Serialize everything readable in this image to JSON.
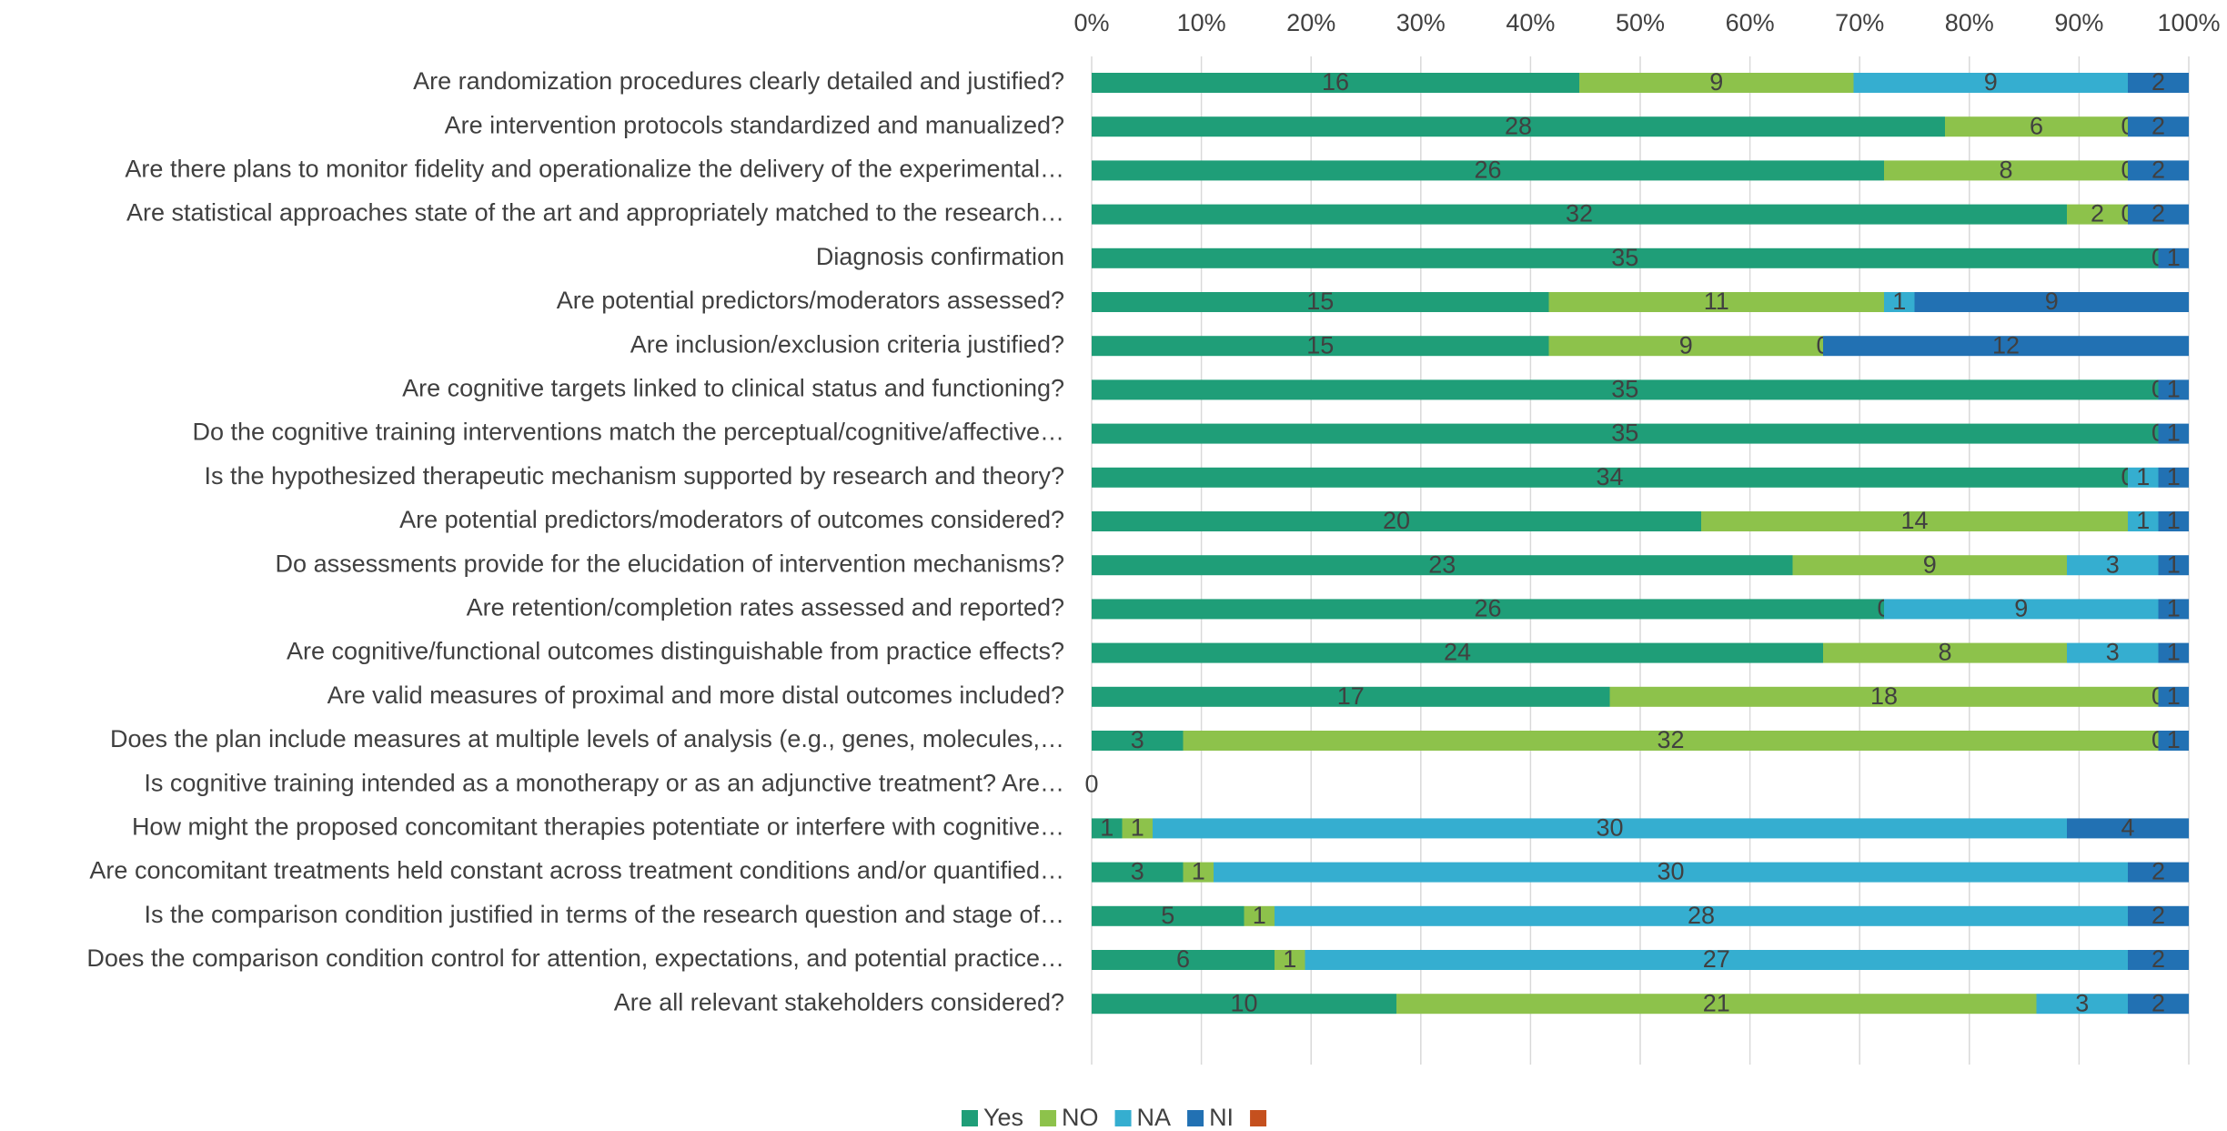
{
  "chart_data": {
    "type": "bar",
    "orientation": "horizontal",
    "stacking": "percent",
    "categories": [
      "Are randomization procedures clearly detailed and justified?",
      "Are intervention protocols standardized and manualized?",
      "Are there plans to monitor fidelity and operationalize the delivery of the experimental…",
      "Are statistical approaches state of the art and appropriately matched to the research…",
      "Diagnosis confirmation",
      "Are potential predictors/moderators assessed?",
      "Are inclusion/exclusion criteria justified?",
      "Are cognitive targets linked to clinical status and functioning?",
      "Do the cognitive training interventions match the perceptual/cognitive/affective…",
      "Is the hypothesized therapeutic mechanism supported by research and theory?",
      "Are potential predictors/moderators of outcomes considered?",
      "Do assessments provide for the elucidation of intervention mechanisms?",
      "Are retention/completion rates assessed and reported?",
      "Are cognitive/functional outcomes distinguishable from practice effects?",
      "Are valid measures of proximal and more distal outcomes included?",
      "Does the plan include measures at multiple levels of analysis (e.g., genes, molecules,…",
      "Is cognitive training intended as a monotherapy or as an adjunctive treatment? Are…",
      "How might the proposed concomitant therapies potentiate or interfere with cognitive…",
      "Are concomitant treatments held constant across treatment conditions and/or quantified…",
      "Is the comparison condition justified in terms of the research question and stage of…",
      "Does the comparison condition control for attention, expectations, and potential practice…",
      "Are all relevant stakeholders considered?"
    ],
    "series": [
      {
        "name": "Yes",
        "color": "#1f9e78",
        "values": [
          16,
          28,
          26,
          32,
          35,
          15,
          15,
          35,
          35,
          34,
          20,
          23,
          26,
          24,
          17,
          3,
          0,
          1,
          3,
          5,
          6,
          10
        ]
      },
      {
        "name": "NO",
        "color": "#8dc24b",
        "values": [
          9,
          6,
          8,
          2,
          null,
          11,
          9,
          null,
          null,
          0,
          14,
          9,
          0,
          8,
          18,
          32,
          null,
          1,
          1,
          1,
          1,
          21
        ]
      },
      {
        "name": "NA",
        "color": "#35aed0",
        "values": [
          9,
          0,
          0,
          0,
          0,
          1,
          0,
          0,
          0,
          1,
          1,
          3,
          9,
          3,
          0,
          0,
          null,
          30,
          30,
          28,
          27,
          3
        ]
      },
      {
        "name": "NI",
        "color": "#2271b3",
        "values": [
          2,
          2,
          2,
          2,
          1,
          9,
          12,
          1,
          1,
          1,
          1,
          1,
          1,
          1,
          1,
          1,
          null,
          4,
          2,
          2,
          2,
          2
        ]
      },
      {
        "name": null,
        "color": "#c5501e",
        "values": [
          null,
          null,
          null,
          null,
          null,
          null,
          null,
          null,
          null,
          null,
          null,
          null,
          null,
          null,
          null,
          null,
          null,
          null,
          null,
          null,
          null,
          null
        ]
      }
    ],
    "xlim": [
      0,
      100
    ],
    "xticks": [
      {
        "value": 0,
        "label": "0%"
      },
      {
        "value": 10,
        "label": "10%"
      },
      {
        "value": 20,
        "label": "20%"
      },
      {
        "value": 30,
        "label": "30%"
      },
      {
        "value": 40,
        "label": "40%"
      },
      {
        "value": 50,
        "label": "50%"
      },
      {
        "value": 60,
        "label": "60%"
      },
      {
        "value": 70,
        "label": "70%"
      },
      {
        "value": 80,
        "label": "80%"
      },
      {
        "value": 90,
        "label": "90%"
      },
      {
        "value": 100,
        "label": "100%"
      }
    ],
    "x_axis_position": "top",
    "grid": true,
    "data_labels": true,
    "legend": "bottom"
  }
}
